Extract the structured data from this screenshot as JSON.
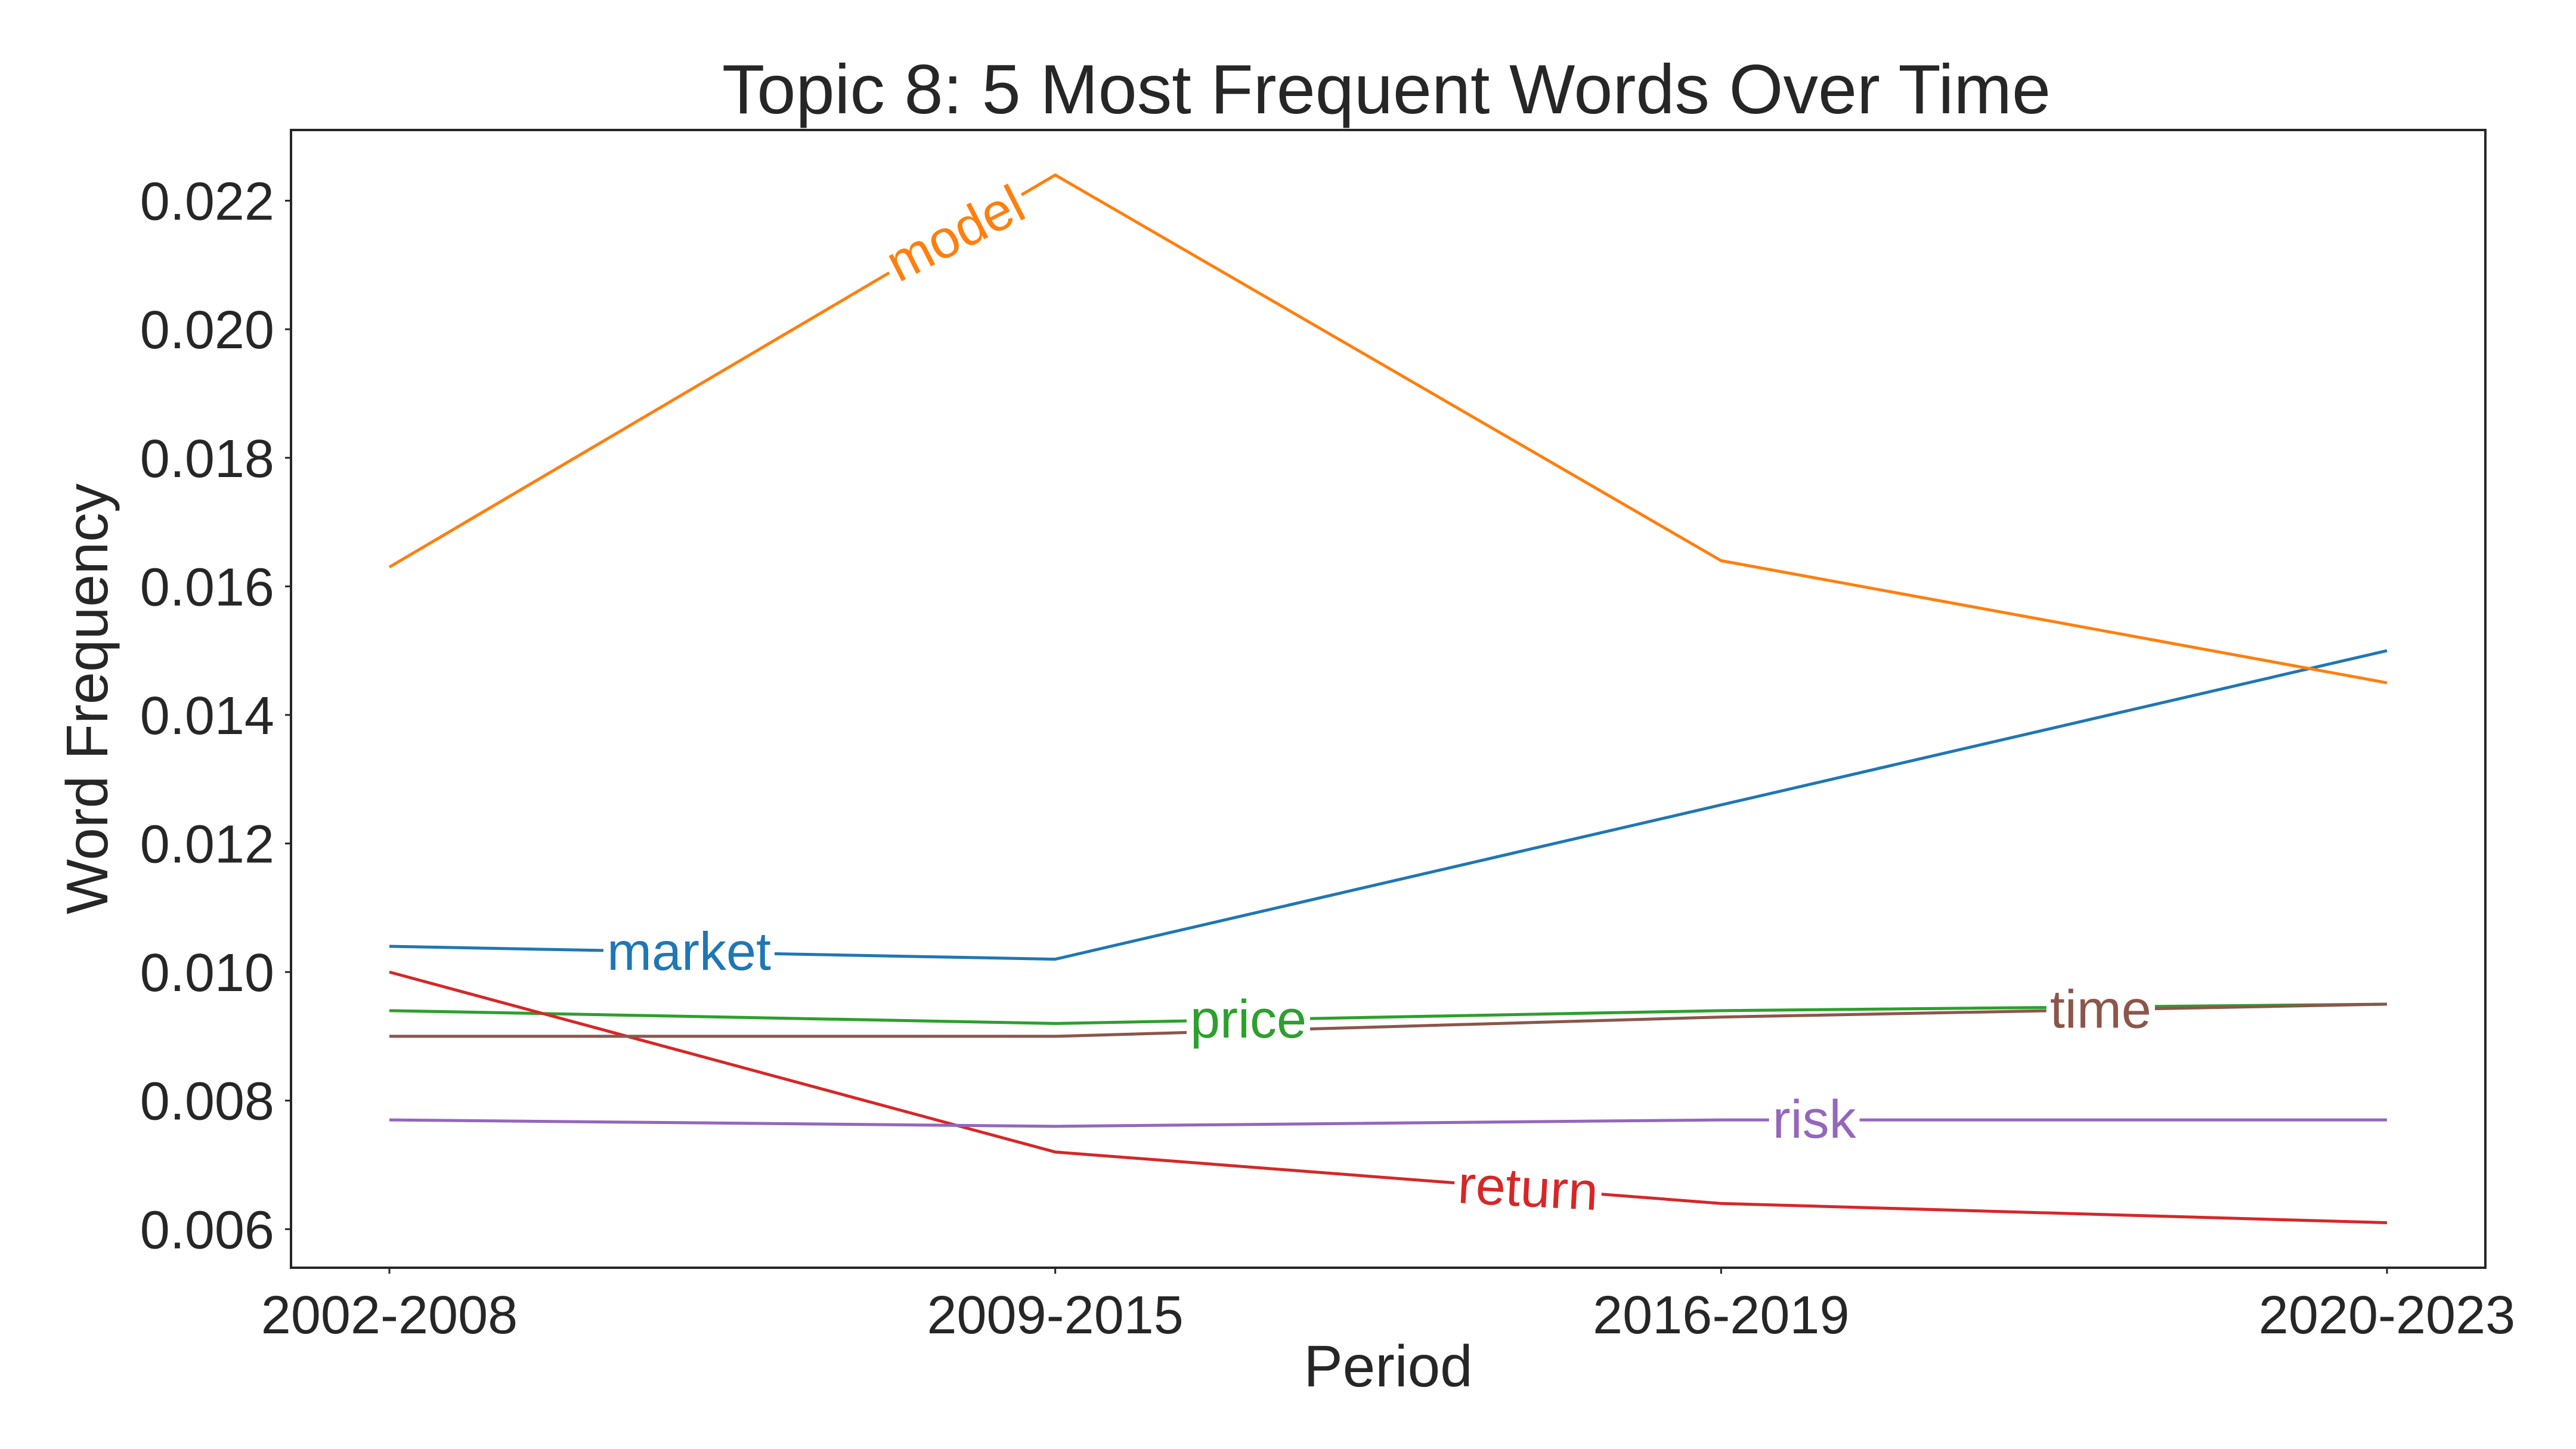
{
  "chart_data": {
    "type": "line",
    "title": "Topic 8: 5 Most Frequent Words Over Time",
    "xlabel": "Period",
    "ylabel": "Word Frequency",
    "categories": [
      "2002-2008",
      "2009-2015",
      "2016-2019",
      "2020-2023"
    ],
    "ylim": [
      0.0054,
      0.0231
    ],
    "yticks": [
      "0.006",
      "0.008",
      "0.010",
      "0.012",
      "0.014",
      "0.016",
      "0.018",
      "0.020",
      "0.022"
    ],
    "grid": false,
    "legend": "none (inline line labels)",
    "series": [
      {
        "name": "market",
        "color": "#1f77b4",
        "values": [
          0.0104,
          0.0102,
          0.0126,
          0.015
        ],
        "label_at": 0.45
      },
      {
        "name": "model",
        "color": "#ff7f0e",
        "values": [
          0.0163,
          0.0224,
          0.0164,
          0.0145
        ],
        "label_at": 0.85,
        "label_rotation": -27
      },
      {
        "name": "price",
        "color": "#2ca02c",
        "values": [
          0.0094,
          0.0092,
          0.0094,
          0.0095
        ],
        "label_at": 1.29
      },
      {
        "name": "return",
        "color": "#d62728",
        "values": [
          0.01,
          0.0072,
          0.0064,
          0.0061
        ],
        "label_at": 1.71,
        "label_rotation": 3
      },
      {
        "name": "risk",
        "color": "#9467bd",
        "values": [
          0.0077,
          0.0076,
          0.0077,
          0.0077
        ],
        "label_at": 2.14
      },
      {
        "name": "time",
        "color": "#8c564b",
        "values": [
          0.009,
          0.009,
          0.0093,
          0.0095
        ],
        "label_at": 2.57
      }
    ]
  }
}
